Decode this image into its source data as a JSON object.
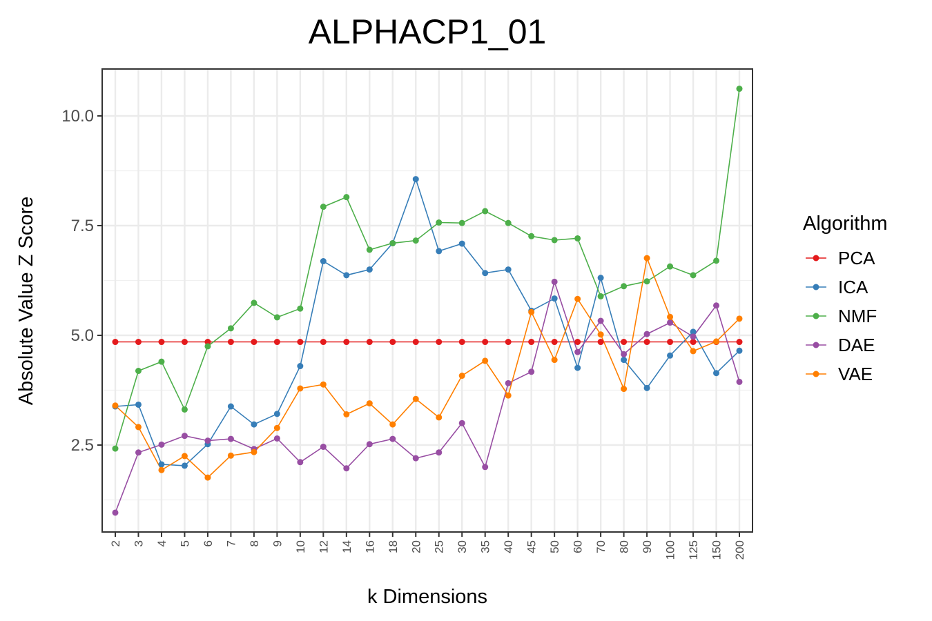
{
  "chart_data": {
    "type": "line",
    "title": "ALPHACP1_01",
    "xlabel": "k Dimensions",
    "ylabel": "Absolute Value Z Score",
    "categories": [
      "2",
      "3",
      "4",
      "5",
      "6",
      "7",
      "8",
      "9",
      "10",
      "12",
      "14",
      "16",
      "18",
      "20",
      "25",
      "30",
      "35",
      "40",
      "45",
      "50",
      "60",
      "70",
      "80",
      "90",
      "100",
      "125",
      "150",
      "200"
    ],
    "y_ticks": [
      "2.5",
      "5.0",
      "7.5",
      "10.0"
    ],
    "ylim": [
      0.6,
      11.1
    ],
    "grid": true,
    "legend": {
      "title": "Algorithm",
      "position": "right"
    },
    "series": [
      {
        "name": "PCA",
        "color": "#e41a1c",
        "values": [
          4.85,
          4.85,
          4.85,
          4.85,
          4.85,
          4.85,
          4.85,
          4.85,
          4.85,
          4.85,
          4.85,
          4.85,
          4.85,
          4.85,
          4.85,
          4.85,
          4.85,
          4.85,
          4.85,
          4.85,
          4.85,
          4.85,
          4.85,
          4.85,
          4.85,
          4.85,
          4.85,
          4.85
        ]
      },
      {
        "name": "ICA",
        "color": "#377eb8",
        "values": [
          3.38,
          3.42,
          2.06,
          2.03,
          2.52,
          3.38,
          2.97,
          3.21,
          4.3,
          6.69,
          6.37,
          6.5,
          7.1,
          8.56,
          6.92,
          7.09,
          6.42,
          6.5,
          5.56,
          5.84,
          4.26,
          6.31,
          4.44,
          3.8,
          4.54,
          5.08,
          4.14,
          4.65
        ]
      },
      {
        "name": "NMF",
        "color": "#4daf4a",
        "values": [
          2.42,
          4.19,
          4.4,
          3.31,
          4.75,
          5.16,
          5.74,
          5.41,
          5.61,
          7.93,
          8.15,
          6.95,
          7.1,
          7.16,
          7.57,
          7.56,
          7.83,
          7.56,
          7.26,
          7.17,
          7.21,
          5.89,
          6.12,
          6.23,
          6.57,
          6.37,
          6.7,
          10.62
        ]
      },
      {
        "name": "DAE",
        "color": "#984ea3",
        "values": [
          0.96,
          2.33,
          2.51,
          2.71,
          2.6,
          2.64,
          2.41,
          2.65,
          2.11,
          2.46,
          1.97,
          2.52,
          2.64,
          2.2,
          2.33,
          3.0,
          2.0,
          3.91,
          4.17,
          6.22,
          4.62,
          5.33,
          4.57,
          5.03,
          5.29,
          4.97,
          5.68,
          3.94
        ]
      },
      {
        "name": "VAE",
        "color": "#ff7f00",
        "values": [
          3.4,
          2.91,
          1.93,
          2.25,
          1.76,
          2.26,
          2.34,
          2.89,
          3.79,
          3.88,
          3.2,
          3.45,
          2.97,
          3.55,
          3.13,
          4.08,
          4.42,
          3.63,
          5.53,
          4.44,
          5.83,
          5.02,
          3.78,
          6.76,
          5.42,
          4.64,
          4.86,
          5.38
        ]
      }
    ]
  }
}
